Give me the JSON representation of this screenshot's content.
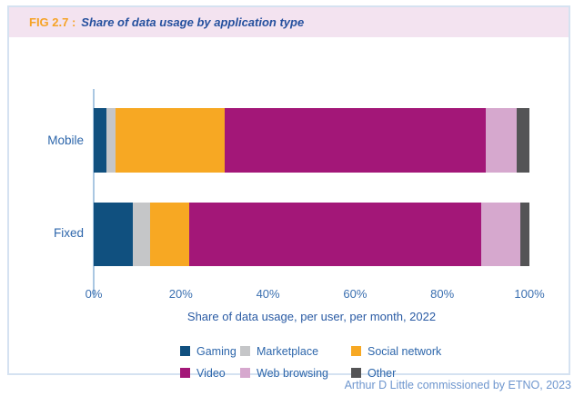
{
  "header": {
    "fig_label": "FIG 2.7 :",
    "title": "Share of data usage by application type"
  },
  "footer": {
    "credit": "Arthur D Little commissioned by ETNO, 2023"
  },
  "ui_colors": {
    "header-bg": "#f3e3f0",
    "fig-label-color": "#f6a326",
    "title-color": "#25509e",
    "text-color": "#2d66ab",
    "tick-color": "#3a6fb0",
    "axis-title-color": "#2a5ba4",
    "footer-color": "#6e96ce",
    "border-color": "#d5e2f1",
    "axis-line-color": "#aac7e2"
  },
  "chart_data": {
    "type": "bar",
    "orientation": "horizontal",
    "stacked": true,
    "categories": [
      "Mobile",
      "Fixed"
    ],
    "series": [
      {
        "name": "Gaming",
        "color": "#10507f",
        "values": [
          3,
          9
        ]
      },
      {
        "name": "Marketplace",
        "color": "#c5c6c8",
        "values": [
          2,
          4
        ]
      },
      {
        "name": "Social network",
        "color": "#f7a823",
        "values": [
          25,
          9
        ]
      },
      {
        "name": "Video",
        "color": "#a31778",
        "values": [
          60,
          67
        ]
      },
      {
        "name": "Web browsing",
        "color": "#d6a8ce",
        "values": [
          7,
          9
        ]
      },
      {
        "name": "Other",
        "color": "#545456",
        "values": [
          3,
          2
        ]
      }
    ],
    "xlabel": "Share of data usage, per user, per month, 2022",
    "x_ticks": [
      "0%",
      "20%",
      "40%",
      "60%",
      "80%",
      "100%"
    ],
    "xlim": [
      0,
      100
    ],
    "grid": false,
    "legend_position": "bottom",
    "legend_rows": [
      [
        "Gaming",
        "Marketplace",
        "Social network"
      ],
      [
        "Video",
        "Web browsing",
        "Other"
      ]
    ]
  }
}
